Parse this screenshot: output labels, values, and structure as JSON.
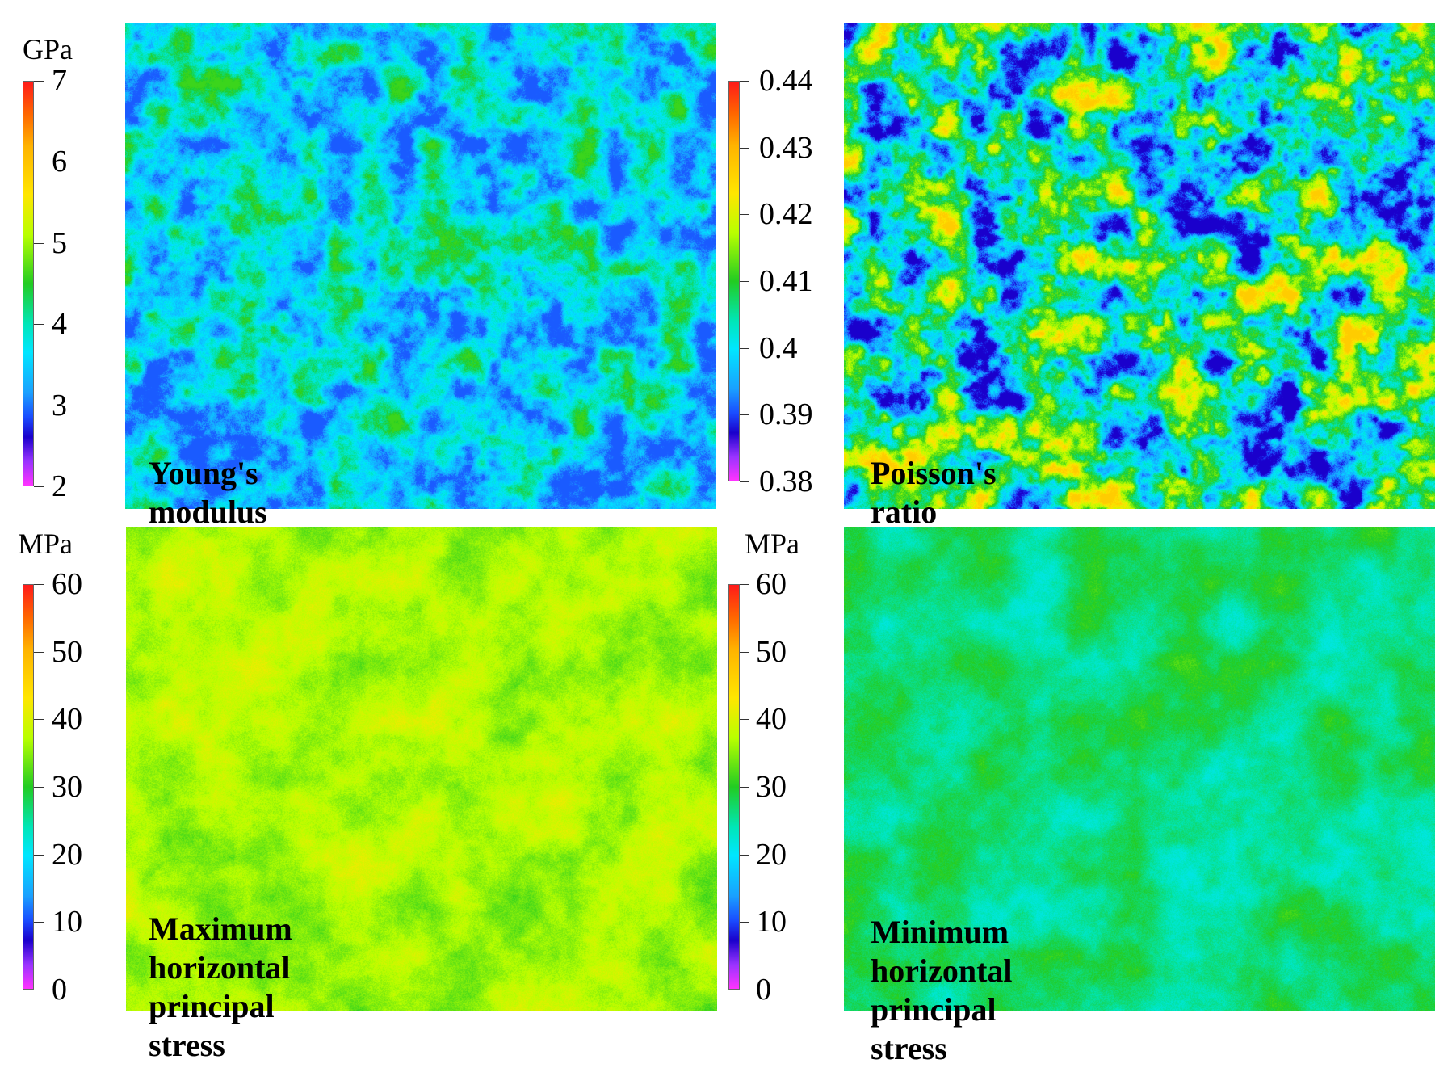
{
  "panels": [
    {
      "id": "youngs",
      "unit": "GPa",
      "ticks": [
        "7",
        "6",
        "5",
        "4",
        "3",
        "2"
      ],
      "title_lines": [
        "Young's modulus"
      ],
      "field": {
        "base": 0.32,
        "amp": 0.16,
        "scale": 38,
        "noise": 0.08,
        "range": [
          0.18,
          0.52
        ]
      }
    },
    {
      "id": "poisson",
      "unit": "",
      "ticks": [
        "0.44",
        "0.43",
        "0.42",
        "0.41",
        "0.4",
        "0.39",
        "0.38"
      ],
      "title_lines": [
        "Poisson's ratio"
      ],
      "field": {
        "base": 0.4,
        "amp": 0.3,
        "scale": 42,
        "noise": 0.1,
        "range": [
          0.12,
          0.78
        ]
      }
    },
    {
      "id": "max-stress",
      "unit": "MPa",
      "ticks": [
        "60",
        "50",
        "40",
        "30",
        "20",
        "10",
        "0"
      ],
      "title_lines": [
        "Maximum horizontal principal",
        "stress"
      ],
      "field": {
        "base": 0.61,
        "amp": 0.05,
        "scale": 60,
        "noise": 0.05,
        "range": [
          0.5,
          0.72
        ]
      }
    },
    {
      "id": "min-stress",
      "unit": "MPa",
      "ticks": [
        "60",
        "50",
        "40",
        "30",
        "20",
        "10",
        "0"
      ],
      "title_lines": [
        "Minimum horizontal principal",
        "stress"
      ],
      "field": {
        "base": 0.44,
        "amp": 0.05,
        "scale": 60,
        "noise": 0.05,
        "range": [
          0.36,
          0.56
        ]
      }
    }
  ]
}
